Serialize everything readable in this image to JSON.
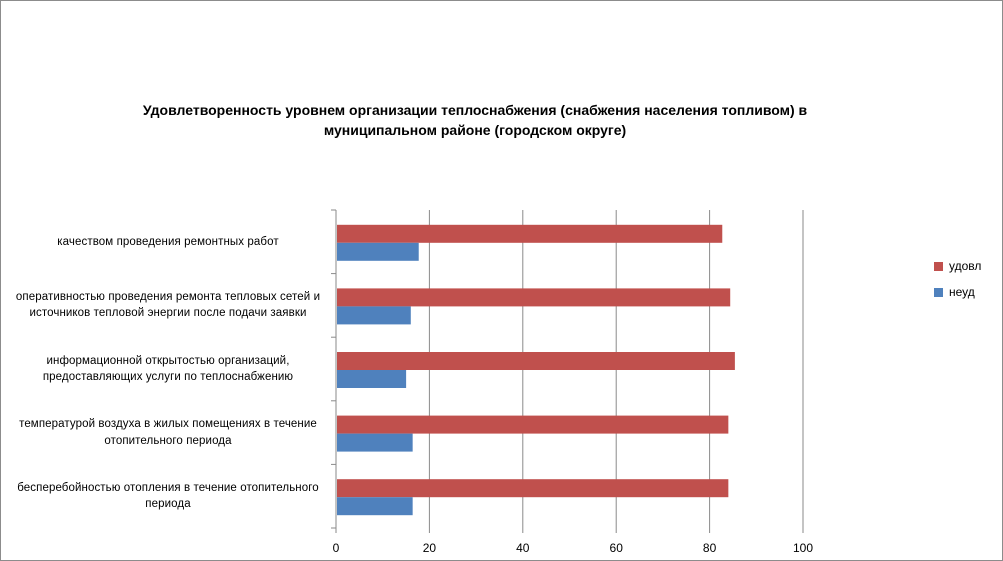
{
  "chart_data": {
    "type": "bar",
    "orientation": "horizontal",
    "title": "Удовлетворенность уровнем организации теплоснабжения (снабжения населения топливом) в муниципальном районе (городском округе)",
    "categories": [
      "качеством проведения ремонтных работ",
      "оперативностью проведения ремонта тепловых сетей и источников тепловой энергии после подачи заявки",
      "информационной открытостью организаций, предоставляющих услуги по теплоснабжению",
      "температурой воздуха в жилых помещениях  в течение  отопительного периода",
      "бесперебойностью  отопления в течение отопительного периода"
    ],
    "series": [
      {
        "name": "удовл",
        "color": "#c0504d",
        "values": [
          82.5,
          84.2,
          85.2,
          83.8,
          83.8
        ]
      },
      {
        "name": "неуд",
        "color": "#4f81bd",
        "values": [
          17.5,
          15.8,
          14.8,
          16.2,
          16.2
        ]
      }
    ],
    "xlim": [
      0,
      100
    ],
    "xticks": [
      "0",
      "20",
      "40",
      "60",
      "80",
      "100"
    ],
    "grid": "vertical",
    "legend": "right"
  }
}
